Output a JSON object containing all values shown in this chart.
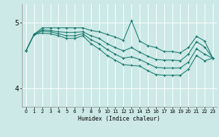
{
  "xlabel": "Humidex (Indice chaleur)",
  "background_color": "#cce9e7",
  "grid_color": "#ffffff",
  "line_color": "#1a7a6e",
  "x_ticks": [
    0,
    1,
    2,
    3,
    4,
    5,
    6,
    7,
    8,
    9,
    10,
    11,
    12,
    13,
    14,
    15,
    16,
    17,
    18,
    19,
    20,
    21,
    22,
    23
  ],
  "y_ticks": [
    4,
    5
  ],
  "ylim": [
    3.72,
    5.28
  ],
  "xlim": [
    -0.5,
    23.5
  ],
  "series": [
    [
      4.57,
      4.82,
      4.92,
      4.92,
      4.92,
      4.92,
      4.92,
      4.92,
      4.88,
      4.86,
      4.82,
      4.78,
      4.73,
      5.03,
      4.72,
      4.65,
      4.62,
      4.56,
      4.56,
      4.54,
      4.62,
      4.79,
      4.72,
      4.46
    ],
    [
      4.57,
      4.82,
      4.89,
      4.88,
      4.86,
      4.85,
      4.85,
      4.86,
      4.8,
      4.76,
      4.68,
      4.62,
      4.57,
      4.62,
      4.55,
      4.49,
      4.44,
      4.43,
      4.43,
      4.42,
      4.52,
      4.71,
      4.63,
      4.46
    ],
    [
      4.57,
      4.82,
      4.87,
      4.86,
      4.83,
      4.8,
      4.8,
      4.83,
      4.74,
      4.68,
      4.59,
      4.52,
      4.46,
      4.48,
      4.44,
      4.38,
      4.32,
      4.31,
      4.31,
      4.31,
      4.4,
      4.6,
      4.52,
      4.46
    ],
    [
      4.57,
      4.82,
      4.84,
      4.83,
      4.8,
      4.76,
      4.76,
      4.8,
      4.68,
      4.6,
      4.5,
      4.43,
      4.36,
      4.35,
      4.34,
      4.27,
      4.21,
      4.2,
      4.2,
      4.2,
      4.29,
      4.5,
      4.42,
      4.46
    ]
  ]
}
